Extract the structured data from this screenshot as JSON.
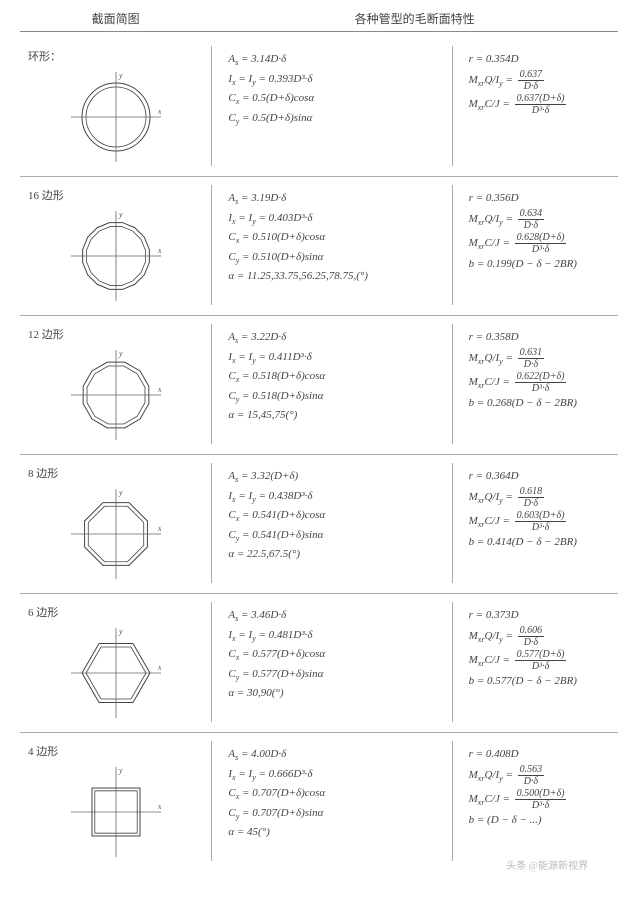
{
  "header": {
    "left": "截面简图",
    "right": "各种管型的毛断面特性"
  },
  "rows": [
    {
      "title": "环形：",
      "shape": "circle",
      "mid": [
        "A_s = 3.14D·δ",
        "I_x = I_y = 0.393D³·δ",
        "C_x = 0.5(D+δ)cosα",
        "C_y = 0.5(D+δ)sinα"
      ],
      "right": [
        "r = 0.354D",
        {
          "pre": "M_{xr}Q/I_y = ",
          "num": "0.637",
          "den": "D·δ"
        },
        {
          "pre": "M_{xr}C/J = ",
          "num": "0.637(D+δ)",
          "den": "D³·δ"
        }
      ]
    },
    {
      "title": "16 边形",
      "shape": "poly16",
      "mid": [
        "A_s = 3.19D·δ",
        "I_x = I_y = 0.403D³·δ",
        "C_x = 0.510(D+δ)cosα",
        "C_y = 0.510(D+δ)sinα",
        "α = 11.25,33.75,56.25,78.75,(°)"
      ],
      "right": [
        "r = 0.356D",
        {
          "pre": "M_{xr}Q/I_y = ",
          "num": "0.634",
          "den": "D·δ"
        },
        {
          "pre": "M_{xr}C/J = ",
          "num": "0.628(D+δ)",
          "den": "D³·δ"
        },
        "b = 0.199(D − δ − 2BR)"
      ]
    },
    {
      "title": "12 边形",
      "shape": "poly12",
      "mid": [
        "A_s = 3.22D·δ",
        "I_x = I_y = 0.411D³·δ",
        "C_x = 0.518(D+δ)cosα",
        "C_y = 0.518(D+δ)sinα",
        "α = 15,45,75(°)"
      ],
      "right": [
        "r = 0.358D",
        {
          "pre": "M_{xr}Q/I_y = ",
          "num": "0.631",
          "den": "D·δ"
        },
        {
          "pre": "M_{xr}C/J = ",
          "num": "0.622(D+δ)",
          "den": "D³·δ"
        },
        "b = 0.268(D − δ − 2BR)"
      ]
    },
    {
      "title": "8 边形",
      "shape": "poly8",
      "mid": [
        "A_s = 3.32(D+δ)",
        "I_x = I_y = 0.438D³·δ",
        "C_x = 0.541(D+δ)cosα",
        "C_y = 0.541(D+δ)sinα",
        "α = 22.5,67.5(°)"
      ],
      "right": [
        "r = 0.364D",
        {
          "pre": "M_{xr}Q/I_y = ",
          "num": "0.618",
          "den": "D·δ"
        },
        {
          "pre": "M_{xr}C/J = ",
          "num": "0.603(D+δ)",
          "den": "D³·δ"
        },
        "b = 0.414(D − δ − 2BR)"
      ]
    },
    {
      "title": "6 边形",
      "shape": "poly6",
      "mid": [
        "A_s = 3.46D·δ",
        "I_x = I_y = 0.481D³·δ",
        "C_x = 0.577(D+δ)cosα",
        "C_y = 0.577(D+δ)sinα",
        "α = 30,90(°)"
      ],
      "right": [
        "r = 0.373D",
        {
          "pre": "M_{xr}Q/I_y = ",
          "num": "0.606",
          "den": "D·δ"
        },
        {
          "pre": "M_{xr}C/J = ",
          "num": "0.577(D+δ)",
          "den": "D³·δ"
        },
        "b = 0.577(D − δ − 2BR)"
      ]
    },
    {
      "title": "4 边形",
      "shape": "poly4",
      "mid": [
        "A_s = 4.00D·δ",
        "I_x = I_y = 0.666D³·δ",
        "C_x = 0.707(D+δ)cosα",
        "C_y = 0.707(D+δ)sinα",
        "α = 45(°)"
      ],
      "right": [
        "r = 0.408D",
        {
          "pre": "M_{xr}Q/I_y = ",
          "num": "0.563",
          "den": "D·δ"
        },
        {
          "pre": "M_{xr}C/J = ",
          "num": "0.500(D+δ)",
          "den": "D³·δ"
        },
        "b = (D − δ − ...)"
      ]
    }
  ],
  "watermark": "头条 @能源新视界",
  "style": {
    "page_bg": "#ffffff",
    "text_color": "#444444",
    "border_color": "#aaaaaa",
    "font_size_body": 11,
    "svg_size": 90,
    "shape_radius_outer": 34,
    "shape_radius_inner": 30,
    "axis_extent": 46
  }
}
